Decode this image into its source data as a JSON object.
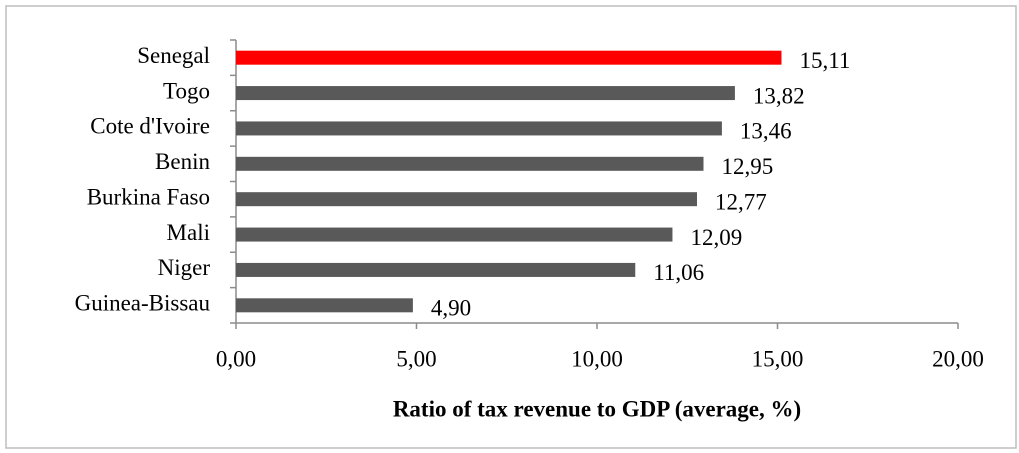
{
  "chart_data": {
    "type": "barh",
    "xlabel": "Ratio of tax revenue to GDP (average, %)",
    "categories": [
      "Senegal",
      "Togo",
      "Cote d'Ivoire",
      "Benin",
      "Burkina Faso",
      "Mali",
      "Niger",
      "Guinea-Bissau"
    ],
    "values": [
      15.11,
      13.82,
      13.46,
      12.95,
      12.77,
      12.09,
      11.06,
      4.9
    ],
    "value_labels": [
      "15,11",
      "13,82",
      "13,46",
      "12,95",
      "12,77",
      "12,09",
      "11,06",
      "4,90"
    ],
    "colors": [
      "#ff0000",
      "#595959",
      "#595959",
      "#595959",
      "#595959",
      "#595959",
      "#595959",
      "#595959"
    ],
    "xlim": [
      0,
      20
    ],
    "xticks": [
      {
        "value": 0,
        "label": "0,00"
      },
      {
        "value": 5,
        "label": "5,00"
      },
      {
        "value": 10,
        "label": "10,00"
      },
      {
        "value": 15,
        "label": "15,00"
      },
      {
        "value": 20,
        "label": "20,00"
      }
    ]
  }
}
